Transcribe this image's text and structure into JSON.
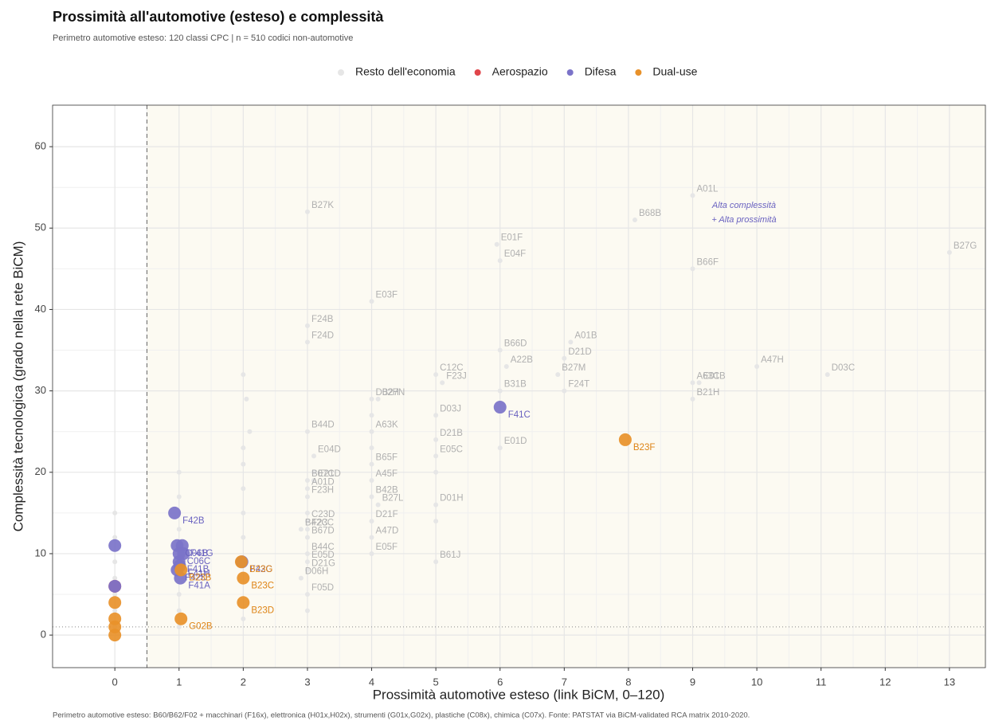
{
  "chart_data": {
    "type": "scatter",
    "title": "Prossimità all'automotive (esteso) e complessità",
    "subtitle": "Perimetro automotive esteso: 120 classi CPC | n = 510 codici non-automotive",
    "x_label": "Prossimità automotive esteso  (link BiCM, 0–120)",
    "y_label": "Complessità tecnologica  (grado nella rete BiCM)",
    "caption": "Perimetro automotive esteso: B60/B62/F02 + macchinari (F16x), elettronica (H01x,H02x), strumenti (G01x,G02x), plastiche (C08x), chimica (C07x). Fonte: PATSTAT via BiCM-validated RCA matrix 2010-2020.",
    "annotation": [
      "Alta complessità",
      "+ Alta prossimità"
    ],
    "xlim": [
      -0.97,
      13.56
    ],
    "ylim": [
      -4,
      65.1
    ],
    "xticks": [
      0,
      1,
      2,
      3,
      4,
      5,
      6,
      7,
      8,
      9,
      10,
      11,
      12,
      13
    ],
    "yticks": [
      0,
      10,
      20,
      30,
      40,
      50,
      60
    ],
    "grid": true,
    "vlines": [
      0.5
    ],
    "hlines": [
      1
    ],
    "legend": "top",
    "series": [
      {
        "name": "Resto dell'economia",
        "color": "#e6e6e6",
        "label_color": "#b0b0b0",
        "x": [
          3,
          9,
          5.95,
          8.1,
          6,
          9,
          13,
          3,
          4,
          6,
          7,
          7.1,
          3,
          6.1,
          5,
          6.9,
          9,
          10,
          11.1,
          4,
          5.1,
          6,
          7,
          9.1,
          4.1,
          9,
          3,
          4,
          5,
          5,
          3.1,
          4,
          5,
          6,
          3,
          3.1,
          4,
          3,
          3,
          4,
          4.1,
          5,
          3,
          2.9,
          3,
          4,
          3,
          4,
          3,
          3,
          2.9,
          3,
          4,
          5,
          3,
          0,
          0,
          0,
          0,
          0,
          0,
          0,
          1,
          1,
          1,
          1,
          1,
          1,
          2,
          2,
          2,
          2,
          2,
          2,
          2,
          2.05,
          2.1,
          3,
          3,
          3.1,
          4,
          4,
          5,
          5
        ],
        "values": [
          52,
          54,
          48,
          51,
          46,
          45,
          47,
          38,
          41,
          35,
          34,
          36,
          36,
          33,
          32,
          32,
          31,
          33,
          32,
          29,
          31,
          30,
          30,
          31,
          29,
          29,
          25,
          25,
          27,
          24,
          22,
          21,
          22,
          23,
          19,
          19,
          19,
          18,
          17,
          17,
          16,
          16,
          13,
          13,
          14,
          14,
          12,
          12,
          10,
          9,
          7,
          8,
          10,
          9,
          5,
          1,
          3,
          5,
          7,
          9,
          12,
          15,
          1,
          3,
          5,
          13,
          17,
          20,
          2,
          12,
          15,
          18,
          21,
          23,
          32,
          29,
          25,
          3,
          15,
          20,
          23,
          27,
          14,
          20
        ],
        "labels": [
          "B27K",
          "A01L",
          "E01F",
          "B68B",
          "E04F",
          "B66F",
          "B27G",
          "F24B",
          "E03F",
          "B66D",
          "D21D",
          "A01B",
          "F24D",
          "A22B",
          "C12C",
          "B27M",
          "A63C",
          "A47H",
          "D03C",
          "D02H",
          "F23J",
          "B31B",
          "F24T",
          "E01B",
          "B27N",
          "B21H",
          "B44D",
          "A63K",
          "D03J",
          "D21B",
          "E04D",
          "B65F",
          "E05C",
          "E01D",
          "B07C",
          "E21D",
          "A45F",
          "A01D",
          "F23H",
          "B42B",
          "B27L",
          "D01H",
          "F23C",
          "B42C",
          "C23D",
          "D21F",
          "B67D",
          "A47D",
          "B44C",
          "E05D",
          "D06H",
          "D21G",
          "E05F",
          "B61J",
          "F05D",
          null,
          null,
          null,
          null,
          null,
          null,
          null,
          null,
          null,
          null,
          null,
          null,
          null,
          null,
          null,
          null,
          null,
          null,
          null,
          null,
          null,
          null,
          null,
          null,
          null,
          null,
          null,
          null,
          null
        ]
      },
      {
        "name": "Aerospazio",
        "color": "#e0454a",
        "label_color": "#e0454a",
        "x": [
          0
        ],
        "values": [
          6
        ],
        "labels": [
          null
        ]
      },
      {
        "name": "Difesa",
        "color": "#7b73c9",
        "label_color": "#6a62c0",
        "x": [
          6,
          0.93,
          0.97,
          1.05,
          1,
          1.07,
          1,
          0.97,
          1.02,
          1.01,
          1.98,
          0,
          0
        ],
        "values": [
          28,
          15,
          11,
          11,
          10,
          10,
          9,
          8,
          7,
          8.5,
          9,
          11,
          6
        ],
        "labels": [
          "F41C",
          "F42B",
          "C06B",
          "F41G",
          "C06C",
          null,
          "F41B",
          "F42D",
          "F41A",
          "F41H",
          "F42C",
          null,
          null
        ]
      },
      {
        "name": "Dual-use",
        "color": "#e8912a",
        "label_color": "#de8416",
        "x": [
          7.95,
          1.97,
          2,
          2,
          1.03,
          1.03,
          0,
          0,
          0,
          0
        ],
        "values": [
          24,
          9,
          7,
          4,
          8,
          2,
          4,
          2,
          1,
          0
        ],
        "labels": [
          "B23F",
          "B23G",
          "B23C",
          "B23D",
          "B23B",
          "G02B",
          null,
          null,
          null,
          null
        ]
      }
    ]
  }
}
